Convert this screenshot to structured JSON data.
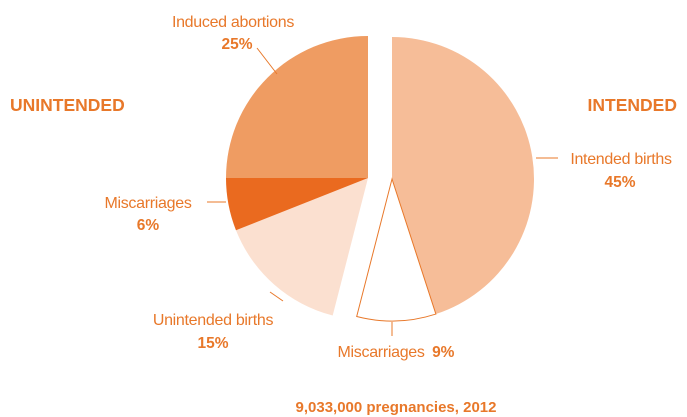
{
  "chart_data": {
    "type": "pie",
    "groups": [
      {
        "label": "UNINTENDED"
      },
      {
        "label": "INTENDED"
      }
    ],
    "slices": [
      {
        "label": "Intended births",
        "percent_label": "45%",
        "value": 45,
        "group": "INTENDED",
        "color": "#f6bd98"
      },
      {
        "label": "Miscarriages",
        "percent_label": "9%",
        "value": 9,
        "group": "INTENDED",
        "color": "#ffffff"
      },
      {
        "label": "Unintended births",
        "percent_label": "15%",
        "value": 15,
        "group": "UNINTENDED",
        "color": "#fbe0d0"
      },
      {
        "label": "Miscarriages",
        "percent_label": "6%",
        "value": 6,
        "group": "UNINTENDED",
        "color": "#ea6a1f"
      },
      {
        "label": "Induced abortions",
        "percent_label": "25%",
        "value": 25,
        "group": "UNINTENDED",
        "color": "#ef9c62"
      }
    ],
    "caption": "9,033,000 pregnancies, 2012",
    "edge_color": "#e8782a"
  }
}
